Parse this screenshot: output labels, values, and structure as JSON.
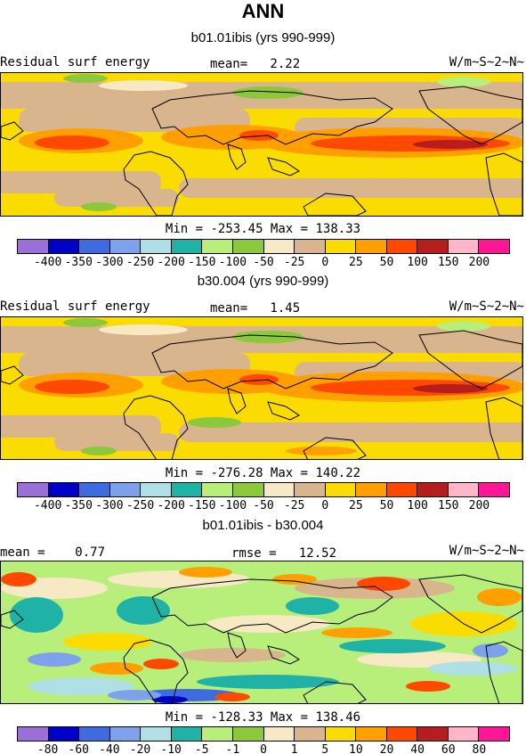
{
  "figure": {
    "title": "ANN",
    "colors": {
      "abs": [
        "#9a6fd8",
        "#0000c8",
        "#3f6be0",
        "#7ea1ec",
        "#afe0e6",
        "#1fb3a8",
        "#b8ef7a",
        "#8bc83c",
        "#f6e9c4",
        "#d8b58c",
        "#fbdc00",
        "#ffa000",
        "#ff4800",
        "#b61d1d",
        "#ffb6c8",
        "#ff1696"
      ],
      "diff": [
        "#9a6fd8",
        "#0000c8",
        "#3f6be0",
        "#7ea1ec",
        "#afe0e6",
        "#1fb3a8",
        "#b8ef7a",
        "#8bc83c",
        "#f6e9c4",
        "#d8b58c",
        "#fbdc00",
        "#ffa000",
        "#ff4800",
        "#b61d1d",
        "#ffb6c8",
        "#ff1696"
      ]
    }
  },
  "panels": [
    {
      "subtitle": "b01.01ibis (yrs 990-999)",
      "left_label": "Residual surf energy",
      "center_label": "mean=   2.22",
      "right_label": "W/m~S~2~N~",
      "minmax": "Min = -253.45 Max = 138.33",
      "ticks": [
        "-400",
        "-350",
        "-300",
        "-250",
        "-200",
        "-150",
        "-100",
        "-50",
        "-25",
        "0",
        "25",
        "50",
        "100",
        "150",
        "200"
      ]
    },
    {
      "subtitle": "b30.004 (yrs 990-999)",
      "left_label": "Residual surf energy",
      "center_label": "mean=   1.45",
      "right_label": "W/m~S~2~N~",
      "minmax": "Min = -276.28 Max = 140.22",
      "ticks": [
        "-400",
        "-350",
        "-300",
        "-250",
        "-200",
        "-150",
        "-100",
        "-50",
        "-25",
        "0",
        "25",
        "50",
        "100",
        "150",
        "200"
      ]
    },
    {
      "subtitle": "b01.01ibis - b30.004",
      "left_label": "mean =    0.77",
      "center_label": "rmse =   12.52",
      "right_label": "W/m~S~2~N~",
      "minmax": "Min = -128.33 Max = 138.46",
      "ticks": [
        "-80",
        "-60",
        "-40",
        "-20",
        "-10",
        "-5",
        "-1",
        "0",
        "1",
        "5",
        "10",
        "20",
        "40",
        "60",
        "80"
      ]
    }
  ],
  "chart_data": [
    {
      "type": "heatmap",
      "title": "b01.01ibis (yrs 990-999)",
      "variable": "Residual surf energy",
      "units": "W/m~S~2~N~",
      "mean": 2.22,
      "min": -253.45,
      "max": 138.33,
      "contour_levels": [
        -400,
        -350,
        -300,
        -250,
        -200,
        -150,
        -100,
        -50,
        -25,
        0,
        25,
        50,
        100,
        150,
        200
      ],
      "dominant_range": "0 to 25 over most oceans; 50 to 150 maximum in the tropical Pacific"
    },
    {
      "type": "heatmap",
      "title": "b30.004 (yrs 990-999)",
      "variable": "Residual surf energy",
      "units": "W/m~S~2~N~",
      "mean": 1.45,
      "min": -276.28,
      "max": 140.22,
      "contour_levels": [
        -400,
        -350,
        -300,
        -250,
        -200,
        -150,
        -100,
        -50,
        -25,
        0,
        25,
        50,
        100,
        150,
        200
      ]
    },
    {
      "type": "heatmap",
      "title": "b01.01ibis - b30.004",
      "units": "W/m~S~2~N~",
      "mean": 0.77,
      "rmse": 12.52,
      "min": -128.33,
      "max": 138.46,
      "contour_levels": [
        -80,
        -60,
        -40,
        -20,
        -10,
        -5,
        -1,
        0,
        1,
        5,
        10,
        20,
        40,
        60,
        80
      ]
    }
  ]
}
